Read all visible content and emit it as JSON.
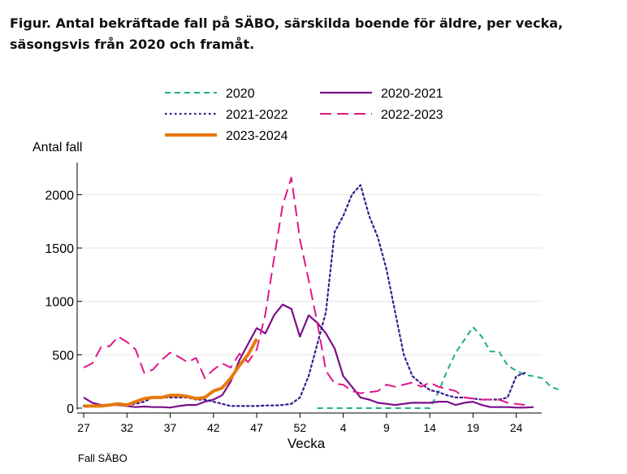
{
  "title": "Figur. Antal bekräftade fall på SÄBO, särskilda boende för äldre, per vecka, säsongsvis från 2020 och framåt.",
  "chart_data": {
    "type": "line",
    "title": "",
    "ylabel": "Antal fall",
    "xlabel": "Vecka",
    "source_note": "Fall SÄBO",
    "ylim": [
      0,
      2300
    ],
    "yticks": [
      0,
      500,
      1000,
      1500,
      2000
    ],
    "xtick_labels": [
      "27",
      "32",
      "37",
      "42",
      "47",
      "52",
      "4",
      "9",
      "14",
      "19",
      "24"
    ],
    "xtick_index": [
      0,
      5,
      10,
      15,
      20,
      25,
      30,
      35,
      40,
      45,
      50
    ],
    "grid": true,
    "legend_position": "top",
    "series": [
      {
        "name": "2020",
        "color": "#1fae8a",
        "dash": "dashed-short",
        "start_index": 27,
        "values": [
          0,
          0,
          0,
          0,
          0,
          0,
          0,
          0,
          0,
          0,
          0,
          0,
          0,
          0,
          150,
          350,
          520,
          640,
          760,
          670,
          530,
          530,
          400,
          350,
          310,
          300,
          280,
          200,
          170
        ]
      },
      {
        "name": "2020-2021",
        "color": "#7b0e8a",
        "dash": "solid",
        "start_index": 0,
        "values": [
          100,
          50,
          30,
          30,
          30,
          20,
          10,
          15,
          10,
          10,
          5,
          20,
          30,
          30,
          60,
          80,
          120,
          250,
          450,
          600,
          750,
          700,
          870,
          970,
          930,
          670,
          870,
          800,
          700,
          560,
          300,
          200,
          100,
          80,
          50,
          40,
          30,
          40,
          50,
          50,
          50,
          60,
          60,
          30,
          50,
          60,
          30,
          10,
          10,
          10,
          5,
          5,
          10
        ]
      },
      {
        "name": "2021-2022",
        "color": "#3a1a8f",
        "dash": "dotted",
        "start_index": 0,
        "values": [
          20,
          20,
          20,
          30,
          30,
          30,
          40,
          60,
          100,
          100,
          100,
          100,
          100,
          80,
          80,
          60,
          40,
          20,
          20,
          20,
          20,
          25,
          25,
          30,
          40,
          100,
          300,
          600,
          900,
          1650,
          1800,
          2000,
          2090,
          1800,
          1600,
          1300,
          900,
          500,
          300,
          230,
          170,
          150,
          120,
          100,
          100,
          90,
          80,
          80,
          80,
          100,
          300,
          330
        ]
      },
      {
        "name": "2022-2023",
        "color": "#e0168a",
        "dash": "dashed-long",
        "start_index": 0,
        "values": [
          380,
          420,
          570,
          580,
          670,
          620,
          550,
          330,
          360,
          450,
          520,
          480,
          430,
          470,
          280,
          360,
          420,
          380,
          510,
          430,
          550,
          880,
          1400,
          1900,
          2160,
          1580,
          1200,
          800,
          350,
          230,
          220,
          160,
          140,
          150,
          160,
          220,
          200,
          220,
          240,
          200,
          240,
          200,
          180,
          160,
          100,
          90,
          80,
          80,
          80,
          50,
          40,
          30
        ]
      },
      {
        "name": "2023-2024",
        "color": "#e8780c",
        "dash": "solid-thick",
        "start_index": 0,
        "values": [
          20,
          20,
          20,
          30,
          40,
          30,
          60,
          90,
          100,
          100,
          120,
          120,
          110,
          90,
          100,
          160,
          190,
          280,
          400,
          500,
          650
        ]
      }
    ]
  }
}
